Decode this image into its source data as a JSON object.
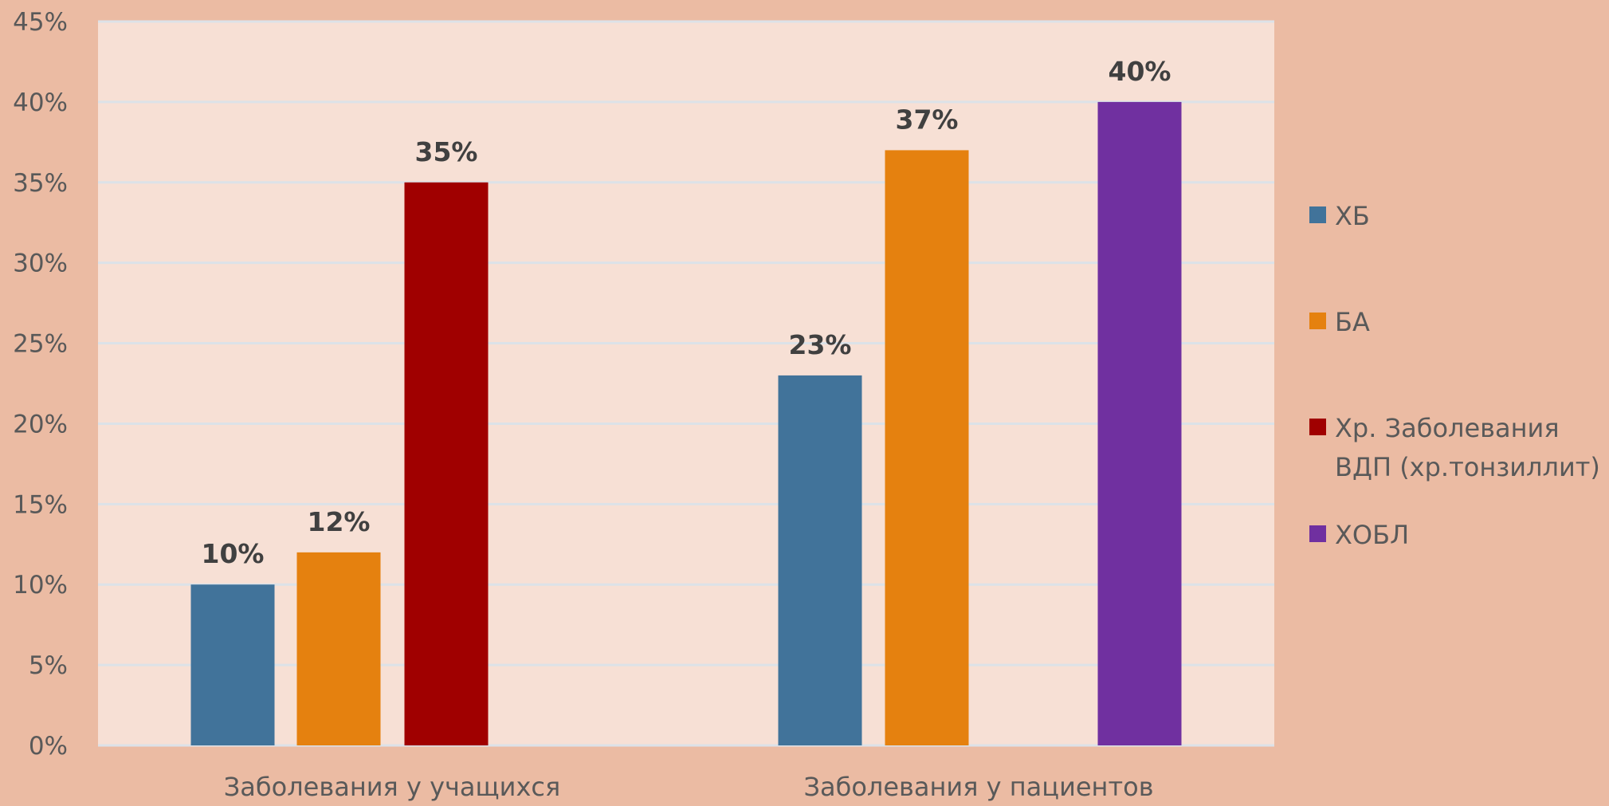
{
  "chart_data": {
    "type": "bar",
    "title": "",
    "xlabel": "",
    "ylabel": "",
    "categories": [
      "Заболевания у учащихся",
      "Заболевания у пациентов"
    ],
    "series": [
      {
        "name": "ХБ",
        "values": [
          10,
          23
        ],
        "color": "#41739A"
      },
      {
        "name": "БА",
        "values": [
          12,
          37
        ],
        "color": "#E5810F"
      },
      {
        "name": "Хр. Заболевания ВДП (хр.тонзиллит)",
        "legend_lines": [
          "Хр. Заболевания",
          "ВДП (хр.тонзиллит)"
        ],
        "values": [
          35,
          null
        ],
        "color": "#A00000"
      },
      {
        "name": "ХОБЛ",
        "values": [
          null,
          40
        ],
        "color": "#7030A0"
      }
    ],
    "yticks": [
      "0%",
      "5%",
      "10%",
      "15%",
      "20%",
      "25%",
      "30%",
      "35%",
      "40%",
      "45%"
    ],
    "ylim": [
      0,
      45
    ],
    "value_suffix": "%",
    "grid": true,
    "legend_position": "right",
    "plot_background": "#F7E0D5",
    "gridline_color": "#DCE2E8"
  }
}
